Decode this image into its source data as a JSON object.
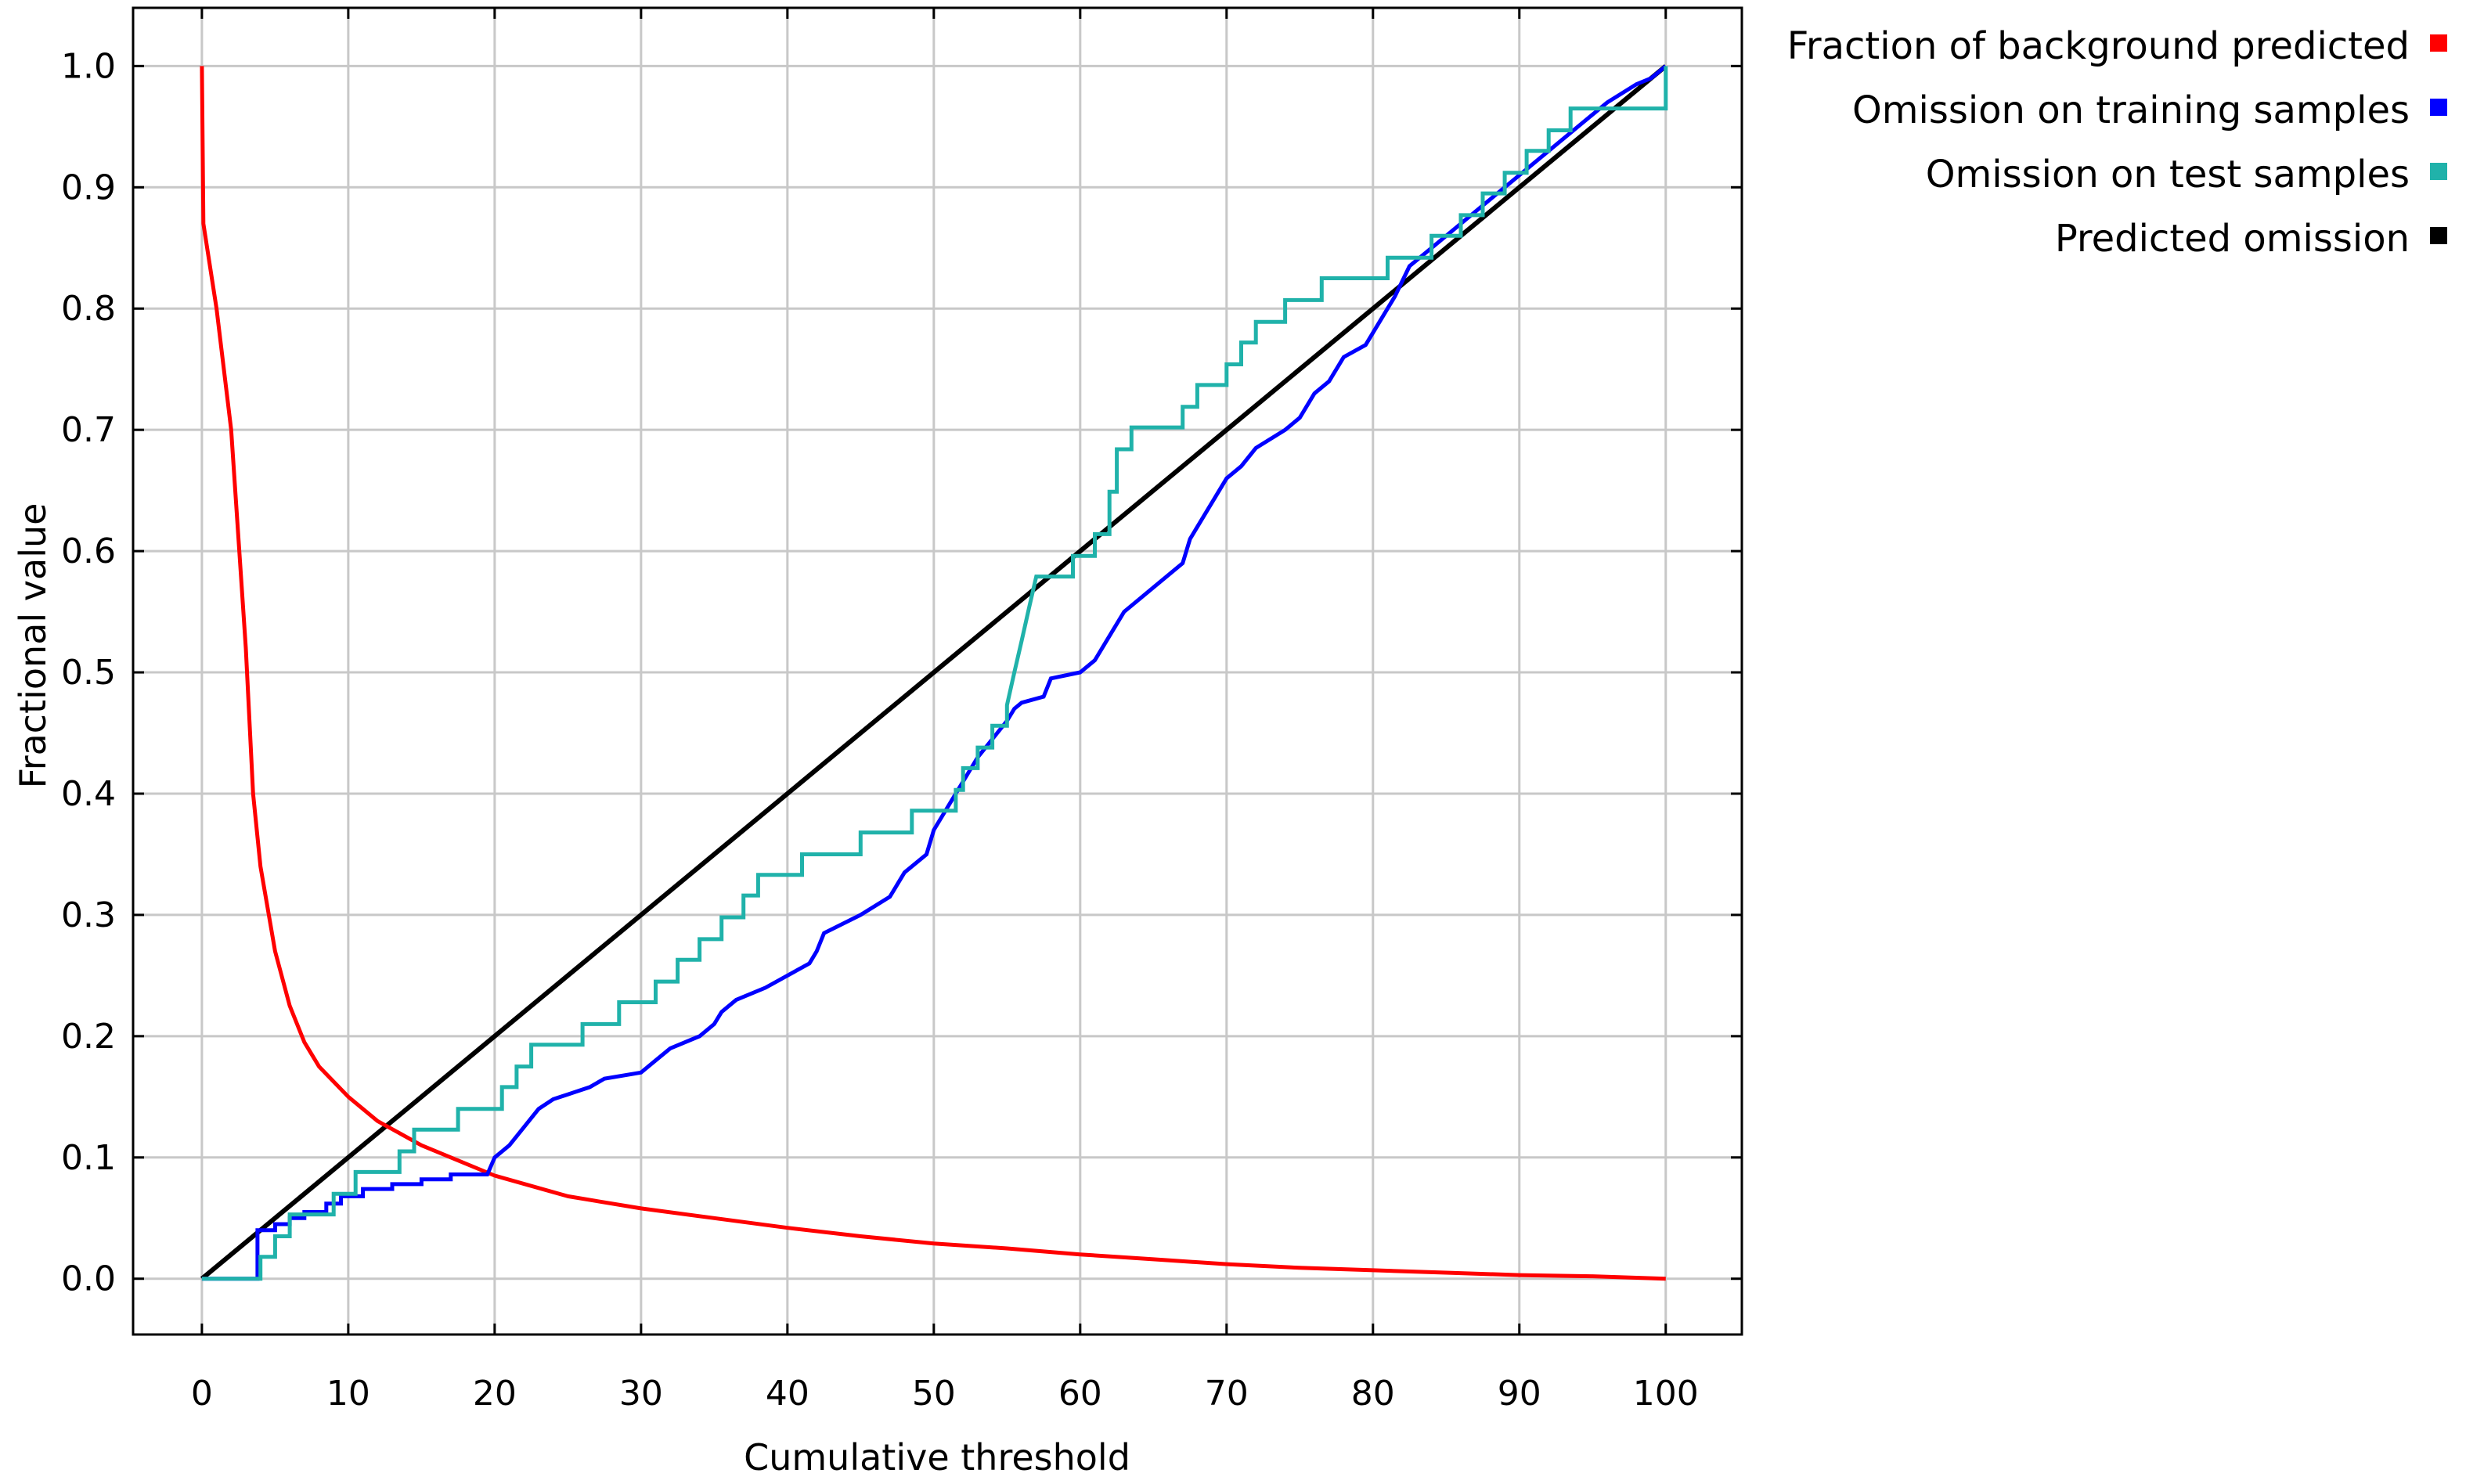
{
  "chart_data": {
    "type": "line",
    "xlabel": "Cumulative threshold",
    "ylabel": "Fractional value",
    "xlim": [
      -4.7,
      105.2
    ],
    "ylim": [
      -0.046,
      1.048
    ],
    "x_ticks": [
      0,
      10,
      20,
      30,
      40,
      50,
      60,
      70,
      80,
      90,
      100
    ],
    "y_ticks": [
      0.0,
      0.1,
      0.2,
      0.3,
      0.4,
      0.5,
      0.6,
      0.7,
      0.8,
      0.9,
      1.0
    ],
    "x_tick_labels": [
      "0",
      "10",
      "20",
      "30",
      "40",
      "50",
      "60",
      "70",
      "80",
      "90",
      "100"
    ],
    "y_tick_labels": [
      "0.0",
      "0.1",
      "0.2",
      "0.3",
      "0.4",
      "0.5",
      "0.6",
      "0.7",
      "0.8",
      "0.9",
      "1.0"
    ],
    "grid": true,
    "legend_position": "right, outside plot, top",
    "series": [
      {
        "name": "Fraction of background predicted",
        "color": "#ff0000",
        "style": "smooth",
        "points": [
          [
            0,
            1.0
          ],
          [
            0.1,
            0.87
          ],
          [
            1,
            0.8
          ],
          [
            2,
            0.7
          ],
          [
            3,
            0.52
          ],
          [
            3.5,
            0.4
          ],
          [
            4,
            0.34
          ],
          [
            5,
            0.27
          ],
          [
            6,
            0.225
          ],
          [
            7,
            0.195
          ],
          [
            8,
            0.175
          ],
          [
            10,
            0.15
          ],
          [
            12,
            0.13
          ],
          [
            15,
            0.11
          ],
          [
            20,
            0.085
          ],
          [
            25,
            0.068
          ],
          [
            30,
            0.058
          ],
          [
            35,
            0.05
          ],
          [
            40,
            0.042
          ],
          [
            45,
            0.035
          ],
          [
            50,
            0.029
          ],
          [
            55,
            0.025
          ],
          [
            60,
            0.02
          ],
          [
            65,
            0.016
          ],
          [
            70,
            0.012
          ],
          [
            75,
            0.009
          ],
          [
            80,
            0.007
          ],
          [
            85,
            0.005
          ],
          [
            90,
            0.003
          ],
          [
            95,
            0.002
          ],
          [
            100,
            0.0
          ]
        ]
      },
      {
        "name": "Omission on training samples",
        "color": "#0000ff",
        "style": "step",
        "points": [
          [
            0,
            0.0
          ],
          [
            3.8,
            0.0
          ],
          [
            3.8,
            0.04
          ],
          [
            5,
            0.04
          ],
          [
            5,
            0.045
          ],
          [
            6,
            0.045
          ],
          [
            6,
            0.05
          ],
          [
            7,
            0.05
          ],
          [
            7,
            0.055
          ],
          [
            8.5,
            0.055
          ],
          [
            8.5,
            0.062
          ],
          [
            9.5,
            0.062
          ],
          [
            9.5,
            0.068
          ],
          [
            11,
            0.068
          ],
          [
            11,
            0.074
          ],
          [
            13,
            0.074
          ],
          [
            13,
            0.078
          ],
          [
            15,
            0.078
          ],
          [
            15,
            0.082
          ],
          [
            17,
            0.082
          ],
          [
            17,
            0.086
          ],
          [
            19.5,
            0.086
          ],
          [
            20,
            0.1
          ],
          [
            21,
            0.11
          ],
          [
            22,
            0.125
          ],
          [
            23,
            0.14
          ],
          [
            24,
            0.148
          ],
          [
            25,
            0.152
          ],
          [
            26.5,
            0.158
          ],
          [
            27.5,
            0.165
          ],
          [
            30,
            0.17
          ],
          [
            31,
            0.18
          ],
          [
            32,
            0.19
          ],
          [
            34,
            0.2
          ],
          [
            35,
            0.21
          ],
          [
            35.5,
            0.22
          ],
          [
            36.5,
            0.23
          ],
          [
            38.5,
            0.24
          ],
          [
            40,
            0.25
          ],
          [
            41.5,
            0.26
          ],
          [
            42,
            0.27
          ],
          [
            42.5,
            0.285
          ],
          [
            45,
            0.3
          ],
          [
            47,
            0.315
          ],
          [
            48,
            0.335
          ],
          [
            49.5,
            0.35
          ],
          [
            50,
            0.37
          ],
          [
            51,
            0.39
          ],
          [
            52,
            0.41
          ],
          [
            53,
            0.43
          ],
          [
            54,
            0.445
          ],
          [
            55,
            0.46
          ],
          [
            55.5,
            0.47
          ],
          [
            56,
            0.475
          ],
          [
            57.5,
            0.48
          ],
          [
            58,
            0.495
          ],
          [
            60,
            0.5
          ],
          [
            61,
            0.51
          ],
          [
            62,
            0.53
          ],
          [
            63,
            0.55
          ],
          [
            65,
            0.57
          ],
          [
            66,
            0.58
          ],
          [
            67,
            0.59
          ],
          [
            67.5,
            0.61
          ],
          [
            68.5,
            0.63
          ],
          [
            69.5,
            0.65
          ],
          [
            70,
            0.66
          ],
          [
            71,
            0.67
          ],
          [
            72,
            0.685
          ],
          [
            74,
            0.7
          ],
          [
            75,
            0.71
          ],
          [
            76,
            0.73
          ],
          [
            77,
            0.74
          ],
          [
            78,
            0.76
          ],
          [
            79.5,
            0.77
          ],
          [
            80.5,
            0.79
          ],
          [
            81.5,
            0.81
          ],
          [
            82.5,
            0.835
          ],
          [
            84,
            0.85
          ],
          [
            86,
            0.87
          ],
          [
            88,
            0.89
          ],
          [
            90,
            0.91
          ],
          [
            92,
            0.93
          ],
          [
            94,
            0.95
          ],
          [
            96,
            0.97
          ],
          [
            98,
            0.985
          ],
          [
            99,
            0.99
          ],
          [
            100,
            1.0
          ]
        ]
      },
      {
        "name": "Omission on test samples",
        "color": "#20b2aa",
        "style": "step",
        "points": [
          [
            0,
            0.0
          ],
          [
            4,
            0.0
          ],
          [
            4,
            0.018
          ],
          [
            5,
            0.018
          ],
          [
            5,
            0.035
          ],
          [
            6,
            0.035
          ],
          [
            6,
            0.053
          ],
          [
            9,
            0.053
          ],
          [
            9,
            0.07
          ],
          [
            10.5,
            0.07
          ],
          [
            10.5,
            0.088
          ],
          [
            13.5,
            0.088
          ],
          [
            13.5,
            0.105
          ],
          [
            14.5,
            0.105
          ],
          [
            14.5,
            0.123
          ],
          [
            17.5,
            0.123
          ],
          [
            17.5,
            0.14
          ],
          [
            20.5,
            0.14
          ],
          [
            20.5,
            0.158
          ],
          [
            21.5,
            0.158
          ],
          [
            21.5,
            0.175
          ],
          [
            22.5,
            0.175
          ],
          [
            22.5,
            0.193
          ],
          [
            26,
            0.193
          ],
          [
            26,
            0.21
          ],
          [
            28.5,
            0.21
          ],
          [
            28.5,
            0.228
          ],
          [
            31,
            0.228
          ],
          [
            31,
            0.245
          ],
          [
            32.5,
            0.245
          ],
          [
            32.5,
            0.263
          ],
          [
            34,
            0.263
          ],
          [
            34,
            0.28
          ],
          [
            35.5,
            0.28
          ],
          [
            35.5,
            0.298
          ],
          [
            37,
            0.298
          ],
          [
            37,
            0.316
          ],
          [
            38,
            0.316
          ],
          [
            38,
            0.333
          ],
          [
            41,
            0.333
          ],
          [
            41,
            0.35
          ],
          [
            45,
            0.35
          ],
          [
            45,
            0.368
          ],
          [
            48.5,
            0.368
          ],
          [
            48.5,
            0.386
          ],
          [
            51.5,
            0.386
          ],
          [
            51.5,
            0.403
          ],
          [
            52,
            0.403
          ],
          [
            52,
            0.421
          ],
          [
            53,
            0.421
          ],
          [
            53,
            0.438
          ],
          [
            54,
            0.438
          ],
          [
            54,
            0.456
          ],
          [
            55,
            0.456
          ],
          [
            55,
            0.473
          ],
          [
            55.5,
            0.5
          ],
          [
            56,
            0.526
          ],
          [
            56.5,
            0.553
          ],
          [
            57,
            0.579
          ],
          [
            59.5,
            0.579
          ],
          [
            59.5,
            0.596
          ],
          [
            61,
            0.596
          ],
          [
            61,
            0.614
          ],
          [
            62,
            0.614
          ],
          [
            62,
            0.649
          ],
          [
            62.5,
            0.649
          ],
          [
            62.5,
            0.684
          ],
          [
            63.5,
            0.684
          ],
          [
            63.5,
            0.702
          ],
          [
            67,
            0.702
          ],
          [
            67,
            0.719
          ],
          [
            68,
            0.719
          ],
          [
            68,
            0.737
          ],
          [
            70,
            0.737
          ],
          [
            70,
            0.754
          ],
          [
            71,
            0.754
          ],
          [
            71,
            0.772
          ],
          [
            72,
            0.772
          ],
          [
            72,
            0.789
          ],
          [
            74,
            0.789
          ],
          [
            74,
            0.807
          ],
          [
            76.5,
            0.807
          ],
          [
            76.5,
            0.825
          ],
          [
            81,
            0.825
          ],
          [
            81,
            0.842
          ],
          [
            84,
            0.842
          ],
          [
            84,
            0.86
          ],
          [
            86,
            0.86
          ],
          [
            86,
            0.877
          ],
          [
            87.5,
            0.877
          ],
          [
            87.5,
            0.895
          ],
          [
            89,
            0.895
          ],
          [
            89,
            0.912
          ],
          [
            90.5,
            0.912
          ],
          [
            90.5,
            0.93
          ],
          [
            92,
            0.93
          ],
          [
            92,
            0.947
          ],
          [
            93.5,
            0.947
          ],
          [
            93.5,
            0.965
          ],
          [
            100,
            0.965
          ],
          [
            100,
            1.0
          ]
        ]
      },
      {
        "name": "Predicted omission",
        "color": "#000000",
        "style": "line",
        "points": [
          [
            0,
            0.0
          ],
          [
            100,
            1.0
          ]
        ]
      }
    ]
  }
}
